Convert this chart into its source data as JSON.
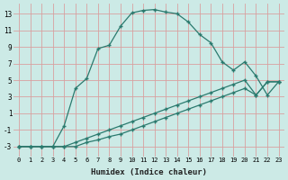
{
  "xlabel": "Humidex (Indice chaleur)",
  "bg_color": "#cceae6",
  "grid_color": "#d8a0a0",
  "line_color": "#2a7a6e",
  "xlim": [
    -0.5,
    23.5
  ],
  "ylim": [
    -4.2,
    14.2
  ],
  "yticks": [
    -3,
    -1,
    1,
    3,
    5,
    7,
    9,
    11,
    13
  ],
  "xticks": [
    0,
    1,
    2,
    3,
    4,
    5,
    6,
    7,
    8,
    9,
    10,
    11,
    12,
    13,
    14,
    15,
    16,
    17,
    18,
    19,
    20,
    21,
    22,
    23
  ],
  "curve1_x": [
    0,
    1,
    2,
    3,
    4,
    5,
    6,
    7,
    8,
    9,
    10,
    11,
    12,
    13,
    14,
    15,
    16,
    17,
    18,
    19,
    20,
    21,
    22,
    23
  ],
  "curve1_y": [
    -3,
    -3,
    -3,
    -3,
    -0.5,
    4.0,
    5.2,
    8.8,
    9.2,
    11.5,
    13.1,
    13.4,
    13.5,
    13.2,
    13.0,
    12.0,
    10.5,
    9.5,
    7.2,
    6.2,
    7.2,
    5.5,
    3.2,
    4.8
  ],
  "curve2_x": [
    0,
    1,
    2,
    3,
    4,
    5,
    6,
    7,
    8,
    9,
    10,
    11,
    12,
    13,
    14,
    15,
    16,
    17,
    18,
    19,
    20,
    21,
    22,
    23
  ],
  "curve2_y": [
    -3,
    -3,
    -3,
    -3,
    -3,
    -2.5,
    -2.0,
    -1.5,
    -1.0,
    -0.5,
    0.0,
    0.5,
    1.0,
    1.5,
    2.0,
    2.5,
    3.0,
    3.5,
    4.0,
    4.5,
    5.0,
    3.2,
    4.8,
    4.8
  ],
  "curve3_x": [
    0,
    1,
    2,
    3,
    4,
    5,
    6,
    7,
    8,
    9,
    10,
    11,
    12,
    13,
    14,
    15,
    16,
    17,
    18,
    19,
    20,
    21,
    22,
    23
  ],
  "curve3_y": [
    -3,
    -3,
    -3,
    -3,
    -3,
    -3,
    -2.5,
    -2.2,
    -1.8,
    -1.5,
    -1.0,
    -0.5,
    0.0,
    0.5,
    1.0,
    1.5,
    2.0,
    2.5,
    3.0,
    3.5,
    4.0,
    3.2,
    4.8,
    4.8
  ]
}
